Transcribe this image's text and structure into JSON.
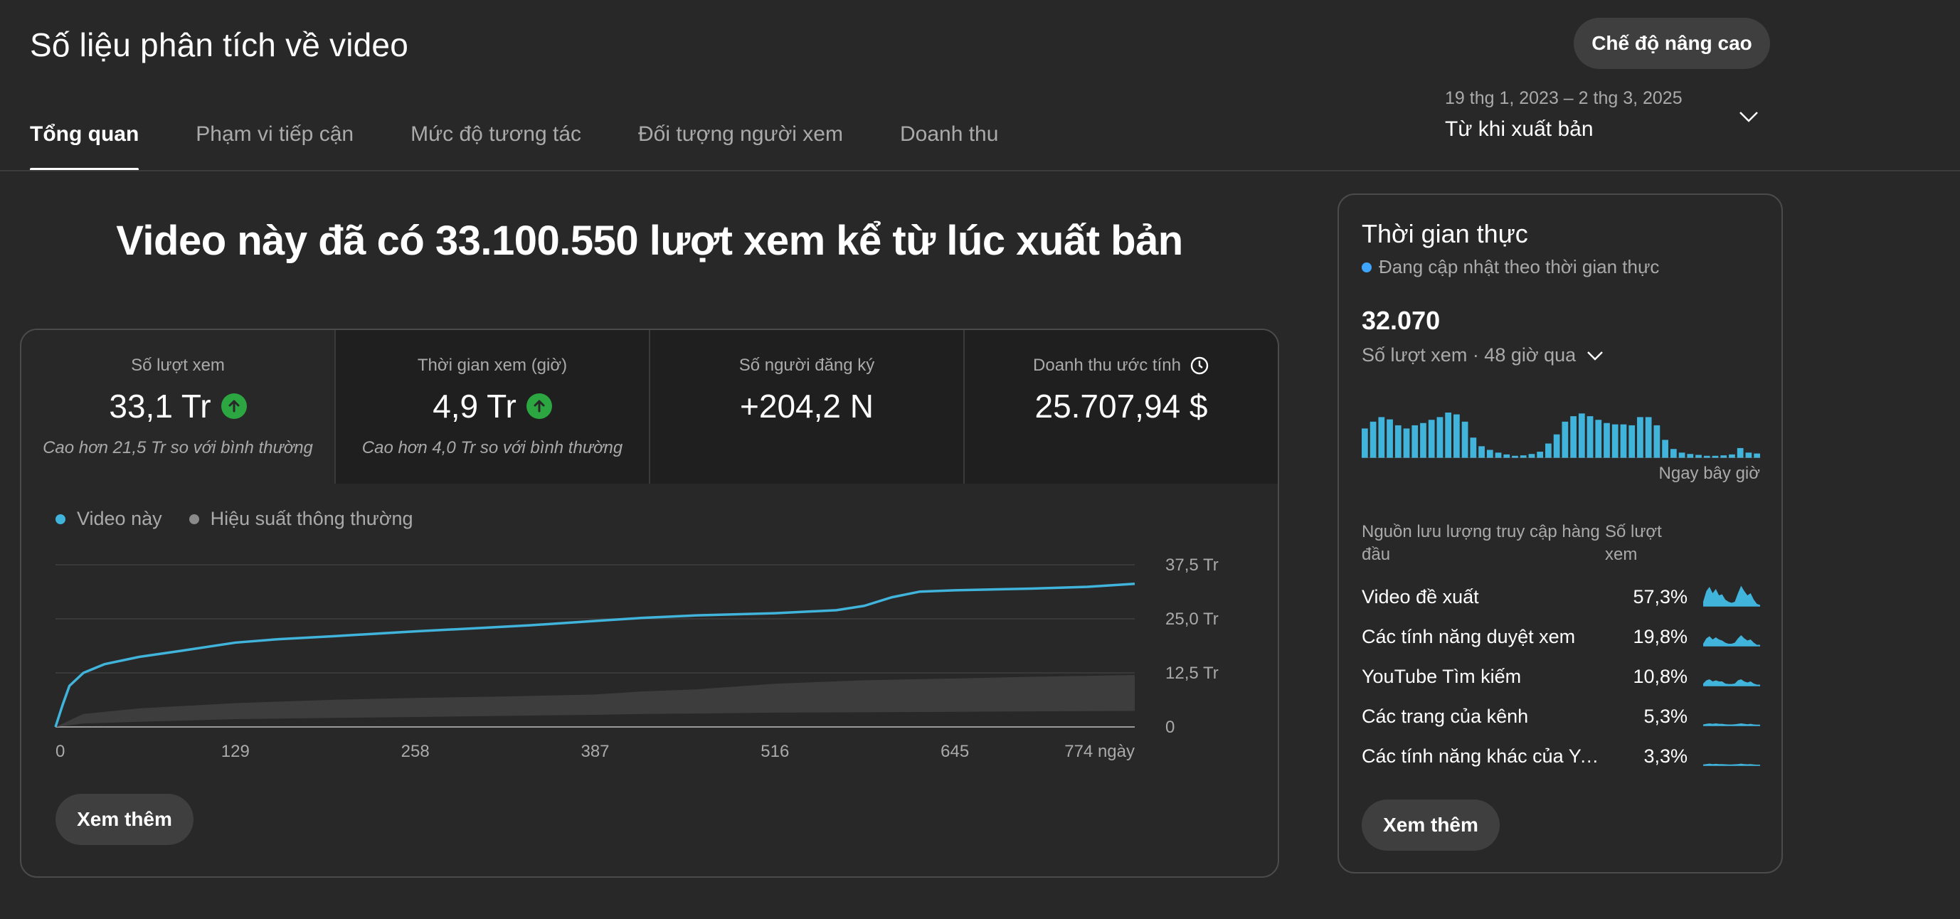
{
  "header": {
    "title": "Số liệu phân tích về video",
    "advanced_button": "Chế độ nâng cao",
    "tabs": [
      {
        "label": "Tổng quan",
        "active": true
      },
      {
        "label": "Phạm vi tiếp cận",
        "active": false
      },
      {
        "label": "Mức độ tương tác",
        "active": false
      },
      {
        "label": "Đối tượng người xem",
        "active": false
      },
      {
        "label": "Doanh thu",
        "active": false
      }
    ],
    "date_range": "19 thg 1, 2023 – 2 thg 3, 2025",
    "date_label": "Từ khi xuất bản"
  },
  "headline": "Video này đã có 33.100.550 lượt xem kể từ lúc xuất bản",
  "metrics": [
    {
      "label": "Số lượt xem",
      "value": "33,1 Tr",
      "trend": "up",
      "note": "Cao hơn 21,5 Tr so với bình thường"
    },
    {
      "label": "Thời gian xem (giờ)",
      "value": "4,9 Tr",
      "trend": "up",
      "note": "Cao hơn 4,0 Tr so với bình thường"
    },
    {
      "label": "Số người đăng ký",
      "value": "+204,2 N",
      "trend": "",
      "note": ""
    },
    {
      "label": "Doanh thu ước tính",
      "value": "25.707,94 $",
      "trend": "",
      "note": "",
      "icon": "clock-icon"
    }
  ],
  "legend": {
    "this_video": "Video này",
    "typical": "Hiệu suất thông thường"
  },
  "colors": {
    "accent_blue": "#3ea6ff",
    "series_blue": "#41b4dc",
    "typical_band": "#3d3d3d",
    "up_green": "#2ba640"
  },
  "chart_data": {
    "type": "line",
    "xlabel": "",
    "ylabel": "",
    "x_ticks": [
      "0",
      "129",
      "258",
      "387",
      "516",
      "645",
      "774 ngày"
    ],
    "y_ticks": [
      "37,5 Tr",
      "25,0 Tr",
      "12,5 Tr",
      "0"
    ],
    "xlim": [
      0,
      774
    ],
    "ylim": [
      0,
      37.5
    ],
    "series": [
      {
        "name": "Video này",
        "x": [
          0,
          5,
          10,
          20,
          35,
          60,
          90,
          129,
          160,
          200,
          258,
          300,
          340,
          387,
          420,
          460,
          516,
          560,
          580,
          600,
          620,
          645,
          700,
          740,
          774
        ],
        "y": [
          0,
          5,
          9.5,
          12.5,
          14.5,
          16.2,
          17.6,
          19.5,
          20.3,
          21.0,
          22.1,
          22.8,
          23.5,
          24.5,
          25.2,
          25.8,
          26.3,
          27.0,
          28.0,
          30.0,
          31.3,
          31.6,
          32.0,
          32.4,
          33.1
        ]
      },
      {
        "name": "Hiệu suất thông thường",
        "x": [
          0,
          20,
          60,
          129,
          200,
          258,
          330,
          387,
          420,
          460,
          516,
          580,
          645,
          700,
          774
        ],
        "lower": [
          0,
          0.8,
          1.2,
          1.8,
          2.1,
          2.3,
          2.6,
          2.8,
          3.0,
          3.1,
          3.3,
          3.4,
          3.5,
          3.6,
          3.7
        ],
        "upper": [
          0,
          3.0,
          4.3,
          5.5,
          6.3,
          6.7,
          7.1,
          7.5,
          8.2,
          8.7,
          10.0,
          10.8,
          11.2,
          11.6,
          12.0
        ]
      }
    ]
  },
  "see_more": "Xem thêm",
  "realtime": {
    "title": "Thời gian thực",
    "status": "Đang cập nhật theo thời gian thực",
    "count": "32.070",
    "metric_label": "Số lượt xem · 48 giờ qua",
    "now_label": "Ngay bây giờ",
    "bars": [
      0.65,
      0.8,
      0.9,
      0.85,
      0.72,
      0.65,
      0.72,
      0.77,
      0.84,
      0.9,
      1.0,
      0.96,
      0.8,
      0.45,
      0.26,
      0.18,
      0.12,
      0.08,
      0.05,
      0.06,
      0.09,
      0.14,
      0.32,
      0.52,
      0.8,
      0.92,
      0.98,
      0.92,
      0.84,
      0.77,
      0.74,
      0.74,
      0.72,
      0.9,
      0.9,
      0.72,
      0.4,
      0.2,
      0.12,
      0.09,
      0.07,
      0.05,
      0.05,
      0.06,
      0.08,
      0.22,
      0.12,
      0.1
    ],
    "sources_header": "Nguồn lưu lượng truy cập hàng đầu",
    "views_header": "Số lượt xem",
    "sources": [
      {
        "name": "Video đề xuất",
        "pct": "57,3%",
        "spark": [
          0.2,
          0.7,
          0.9,
          0.6,
          0.8,
          0.5,
          0.55,
          0.3,
          0.2,
          0.15,
          0.2,
          0.6,
          0.95,
          0.7,
          0.5,
          0.6,
          0.3,
          0.1,
          0.05
        ]
      },
      {
        "name": "Các tính năng duyệt xem",
        "pct": "19,8%",
        "spark": [
          0.1,
          0.35,
          0.45,
          0.3,
          0.4,
          0.3,
          0.25,
          0.15,
          0.1,
          0.1,
          0.15,
          0.35,
          0.5,
          0.35,
          0.25,
          0.3,
          0.15,
          0.05,
          0.05
        ]
      },
      {
        "name": "YouTube Tìm kiếm",
        "pct": "10,8%",
        "spark": [
          0.1,
          0.25,
          0.3,
          0.2,
          0.25,
          0.2,
          0.2,
          0.1,
          0.08,
          0.08,
          0.1,
          0.25,
          0.3,
          0.2,
          0.15,
          0.2,
          0.1,
          0.05,
          0.05
        ]
      },
      {
        "name": "Các trang của kênh",
        "pct": "5,3%",
        "spark": [
          0.05,
          0.08,
          0.1,
          0.08,
          0.1,
          0.08,
          0.08,
          0.06,
          0.05,
          0.05,
          0.06,
          0.08,
          0.1,
          0.08,
          0.06,
          0.08,
          0.05,
          0.04,
          0.04
        ]
      },
      {
        "name": "Các tính năng khác của You…",
        "pct": "3,3%",
        "spark": [
          0.04,
          0.06,
          0.08,
          0.06,
          0.07,
          0.06,
          0.06,
          0.05,
          0.04,
          0.04,
          0.05,
          0.06,
          0.08,
          0.06,
          0.05,
          0.06,
          0.04,
          0.03,
          0.03
        ]
      }
    ]
  }
}
